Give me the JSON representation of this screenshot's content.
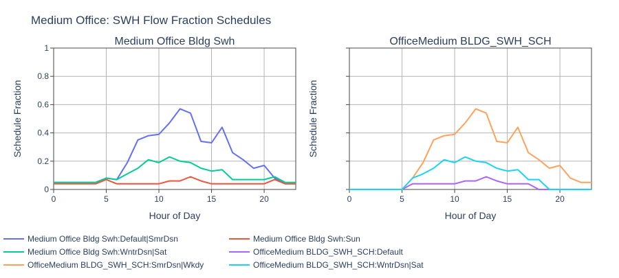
{
  "title": "Medium Office: SWH Flow Fraction Schedules",
  "colors": {
    "text": "#2a3f5f",
    "grid": "#b4b4b4",
    "axis": "#444444"
  },
  "chart_data": [
    {
      "type": "line",
      "title": "Medium Office Bldg Swh",
      "xlabel": "Hour of Day",
      "ylabel": "Schedule Fraction",
      "xlim": [
        0,
        23
      ],
      "ylim": [
        0,
        1
      ],
      "x_ticks": [
        0,
        5,
        10,
        15,
        20
      ],
      "y_ticks": [
        0,
        0.2,
        0.4,
        0.6,
        0.8,
        1
      ],
      "x_tick_labels": [
        "0",
        "5",
        "10",
        "15",
        "20"
      ],
      "y_tick_labels": [
        "0",
        "0.2",
        "0.4",
        "0.6",
        "0.8",
        "1"
      ],
      "grid": true,
      "x": [
        0,
        1,
        2,
        3,
        4,
        5,
        6,
        7,
        8,
        9,
        10,
        11,
        12,
        13,
        14,
        15,
        16,
        17,
        18,
        19,
        20,
        21,
        22,
        23
      ],
      "series": [
        {
          "name": "Medium Office Bldg Swh:Default|SmrDsn",
          "color": "#636efa",
          "values": [
            0.05,
            0.05,
            0.05,
            0.05,
            0.05,
            0.08,
            0.07,
            0.19,
            0.35,
            0.38,
            0.39,
            0.47,
            0.57,
            0.54,
            0.34,
            0.33,
            0.44,
            0.26,
            0.21,
            0.15,
            0.17,
            0.08,
            0.04,
            0.04
          ]
        },
        {
          "name": "Medium Office Bldg Swh:Sun",
          "color": "#ef553b",
          "values": [
            0.04,
            0.04,
            0.04,
            0.04,
            0.04,
            0.07,
            0.04,
            0.04,
            0.04,
            0.04,
            0.04,
            0.06,
            0.06,
            0.09,
            0.06,
            0.04,
            0.04,
            0.04,
            0.04,
            0.04,
            0.04,
            0.07,
            0.04,
            0.04
          ]
        },
        {
          "name": "Medium Office Bldg Swh:WntrDsn|Sat",
          "color": "#00cc96",
          "values": [
            0.05,
            0.05,
            0.05,
            0.05,
            0.05,
            0.08,
            0.07,
            0.11,
            0.15,
            0.21,
            0.19,
            0.23,
            0.2,
            0.19,
            0.15,
            0.13,
            0.14,
            0.07,
            0.07,
            0.07,
            0.07,
            0.09,
            0.05,
            0.05
          ]
        }
      ]
    },
    {
      "type": "line",
      "title": "OfficeMedium BLDG_SWH_SCH",
      "xlabel": "Hour of Day",
      "ylabel": "Schedule Fraction",
      "xlim": [
        0,
        23
      ],
      "ylim": [
        0,
        1
      ],
      "x_ticks": [
        0,
        5,
        10,
        15,
        20
      ],
      "y_ticks": [
        0,
        0.2,
        0.4,
        0.6,
        0.8,
        1
      ],
      "x_tick_labels": [
        "0",
        "5",
        "10",
        "15",
        "20"
      ],
      "y_tick_labels": [],
      "grid": true,
      "x": [
        0,
        1,
        2,
        3,
        4,
        5,
        6,
        7,
        8,
        9,
        10,
        11,
        12,
        13,
        14,
        15,
        16,
        17,
        18,
        19,
        20,
        21,
        22,
        23
      ],
      "series": [
        {
          "name": "OfficeMedium BLDG_SWH_SCH:Default",
          "color": "#ab63fa",
          "values": [
            0,
            0,
            0,
            0,
            0,
            0,
            0.04,
            0.04,
            0.04,
            0.04,
            0.04,
            0.06,
            0.06,
            0.09,
            0.06,
            0.04,
            0.04,
            0.04,
            0,
            0,
            0,
            0,
            0,
            0
          ]
        },
        {
          "name": "OfficeMedium BLDG_SWH_SCH:SmrDsn|Wkdy",
          "color": "#ffa15a",
          "values": [
            0,
            0,
            0,
            0,
            0,
            0,
            0.08,
            0.19,
            0.35,
            0.38,
            0.39,
            0.47,
            0.57,
            0.54,
            0.34,
            0.33,
            0.44,
            0.26,
            0.21,
            0.15,
            0.17,
            0.08,
            0.05,
            0.05
          ]
        },
        {
          "name": "OfficeMedium BLDG_SWH_SCH:WntrDsn|Sat",
          "color": "#19d3f3",
          "values": [
            0,
            0,
            0,
            0,
            0,
            0,
            0.08,
            0.11,
            0.15,
            0.21,
            0.19,
            0.23,
            0.2,
            0.19,
            0.15,
            0.13,
            0.14,
            0.07,
            0.07,
            0,
            0,
            0,
            0,
            0
          ]
        }
      ]
    }
  ],
  "legend": [
    {
      "label": "Medium Office Bldg Swh:Default|SmrDsn",
      "color": "#636efa"
    },
    {
      "label": "Medium Office Bldg Swh:Sun",
      "color": "#ef553b"
    },
    {
      "label": "Medium Office Bldg Swh:WntrDsn|Sat",
      "color": "#00cc96"
    },
    {
      "label": "OfficeMedium BLDG_SWH_SCH:Default",
      "color": "#ab63fa"
    },
    {
      "label": "OfficeMedium BLDG_SWH_SCH:SmrDsn|Wkdy",
      "color": "#ffa15a"
    },
    {
      "label": "OfficeMedium BLDG_SWH_SCH:WntrDsn|Sat",
      "color": "#19d3f3"
    }
  ]
}
